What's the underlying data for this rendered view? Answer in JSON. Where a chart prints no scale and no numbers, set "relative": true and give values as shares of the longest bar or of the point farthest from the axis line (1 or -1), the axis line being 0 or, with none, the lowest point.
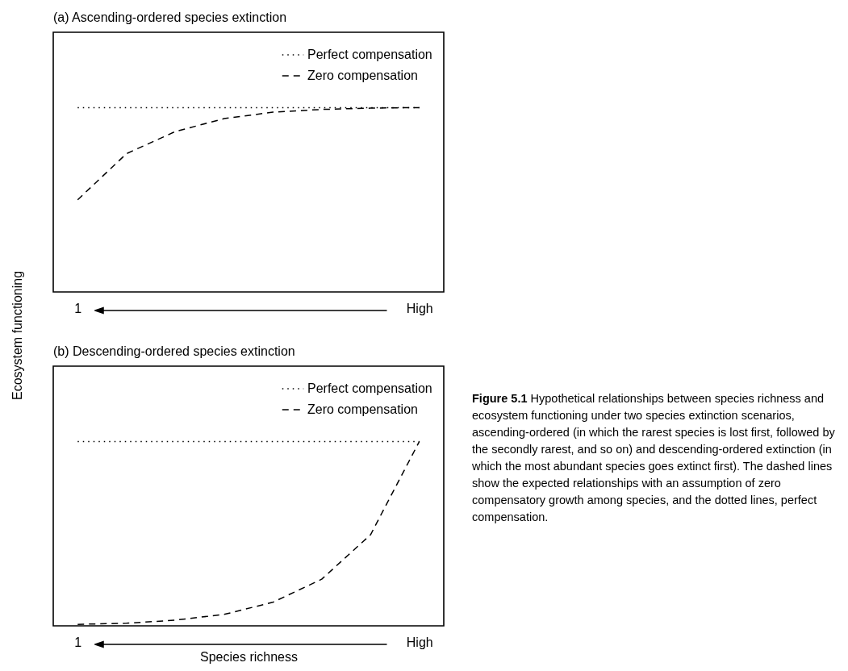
{
  "chart_data": [
    {
      "type": "line",
      "title": "(a) Ascending-ordered species extinction",
      "ylabel": "Ecosystem functioning",
      "relative": true,
      "legend": "top right",
      "grid": false,
      "categories": [
        "1",
        null,
        null,
        null,
        null,
        null,
        null,
        "High"
      ],
      "series": [
        {
          "name": "Perfect compensation",
          "color": "#000000",
          "line_style": "dotted",
          "values": [
            1,
            1,
            1,
            1,
            1,
            1,
            1,
            1
          ]
        },
        {
          "name": "Zero compensation",
          "color": "#000000",
          "line_style": "dashed",
          "values": [
            0.5,
            0.75,
            0.87,
            0.94,
            0.975,
            0.99,
            0.997,
            1
          ]
        }
      ]
    },
    {
      "type": "line",
      "title": "(b) Descending-ordered species extinction",
      "xlabel": "Species richness",
      "relative": true,
      "legend": "top right",
      "grid": false,
      "categories": [
        "1",
        null,
        null,
        null,
        null,
        null,
        null,
        "High"
      ],
      "series": [
        {
          "name": "Perfect compensation",
          "color": "#000000",
          "line_style": "dotted",
          "values": [
            1,
            1,
            1,
            1,
            1,
            1,
            1,
            1
          ]
        },
        {
          "name": "Zero compensation",
          "color": "#000000",
          "line_style": "dashed",
          "values": [
            0.008,
            0.014,
            0.031,
            0.062,
            0.128,
            0.253,
            0.494,
            1
          ]
        }
      ],
      "annotations": [
        "Figure 5.1",
        "Hypothetical relationships between species richness and ecosystem functioning under two species extinction scenarios, ascending-ordered (in which the rarest species is lost first, followed by the secondly rarest, and so on) and descending-ordered extinction (in which the most abundant species goes extinct first). The dashed lines show the expected relationships with an assumption of zero compensatory growth among species, and the dotted lines, perfect compensation."
      ]
    }
  ]
}
